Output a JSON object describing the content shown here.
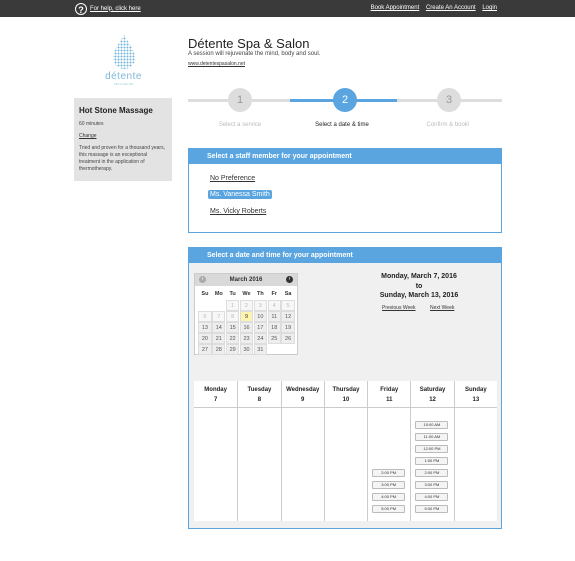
{
  "topbar": {
    "help_text": "For help, click here",
    "links": [
      "Book Appointment",
      "Create An Account",
      "Login"
    ]
  },
  "logo": {
    "text": "détente",
    "sub": "SPA & SALON"
  },
  "spa": {
    "title": "Détente Spa & Salon",
    "tagline": "A session will rejuvenate the mind, body and soul.",
    "url": "www.detentespasalon.net"
  },
  "service": {
    "name": "Hot Stone Massage",
    "duration": "60 minutes",
    "change_label": "Change",
    "description": "Tried and proven for a thousand years, this massage is an exceptional treatment in the application of thermotherapy."
  },
  "steps": [
    {
      "number": "1",
      "label": "Select a service"
    },
    {
      "number": "2",
      "label": "Select a date & time"
    },
    {
      "number": "3",
      "label": "Confirm & book!"
    }
  ],
  "staff": {
    "header": "Select a staff member for your appointment",
    "options": [
      "No Preference",
      "Ms. Vanessa Smith",
      "Ms. Vicky Roberts"
    ]
  },
  "datetime": {
    "header": "Select a date and time for your appointment",
    "calendar": {
      "month_label": "March 2016",
      "dow": [
        "Su",
        "Mo",
        "Tu",
        "We",
        "Th",
        "Fr",
        "Sa"
      ],
      "weeks": [
        [
          "",
          "",
          "1",
          "2",
          "3",
          "4",
          "5"
        ],
        [
          "6",
          "7",
          "8",
          "9",
          "10",
          "11",
          "12"
        ],
        [
          "13",
          "14",
          "15",
          "16",
          "17",
          "18",
          "19"
        ],
        [
          "20",
          "21",
          "22",
          "23",
          "24",
          "25",
          "26"
        ],
        [
          "27",
          "28",
          "29",
          "30",
          "31",
          "",
          ""
        ]
      ],
      "today": "9"
    },
    "range_start": "Monday, March 7, 2016",
    "range_to": "to",
    "range_end": "Sunday, March 13, 2016",
    "prev_week": "Previous Week",
    "next_week": "Next Week",
    "days": [
      {
        "name": "Monday",
        "date": "7",
        "slots": []
      },
      {
        "name": "Tuesday",
        "date": "8",
        "slots": []
      },
      {
        "name": "Wednesday",
        "date": "9",
        "slots": []
      },
      {
        "name": "Thursday",
        "date": "10",
        "slots": []
      },
      {
        "name": "Friday",
        "date": "11",
        "slots": [
          "2:00 PM",
          "3:00 PM",
          "4:00 PM",
          "5:00 PM"
        ]
      },
      {
        "name": "Saturday",
        "date": "12",
        "slots": [
          "10:00 AM",
          "11:00 AM",
          "12:00 PM",
          "1:00 PM",
          "2:00 PM",
          "3:00 PM",
          "4:00 PM",
          "5:00 PM"
        ]
      },
      {
        "name": "Sunday",
        "date": "13",
        "slots": []
      }
    ]
  },
  "colors": {
    "accent": "#5aa5e0",
    "topbar": "#3a3a3a",
    "step_inactive": "#dddddd"
  }
}
